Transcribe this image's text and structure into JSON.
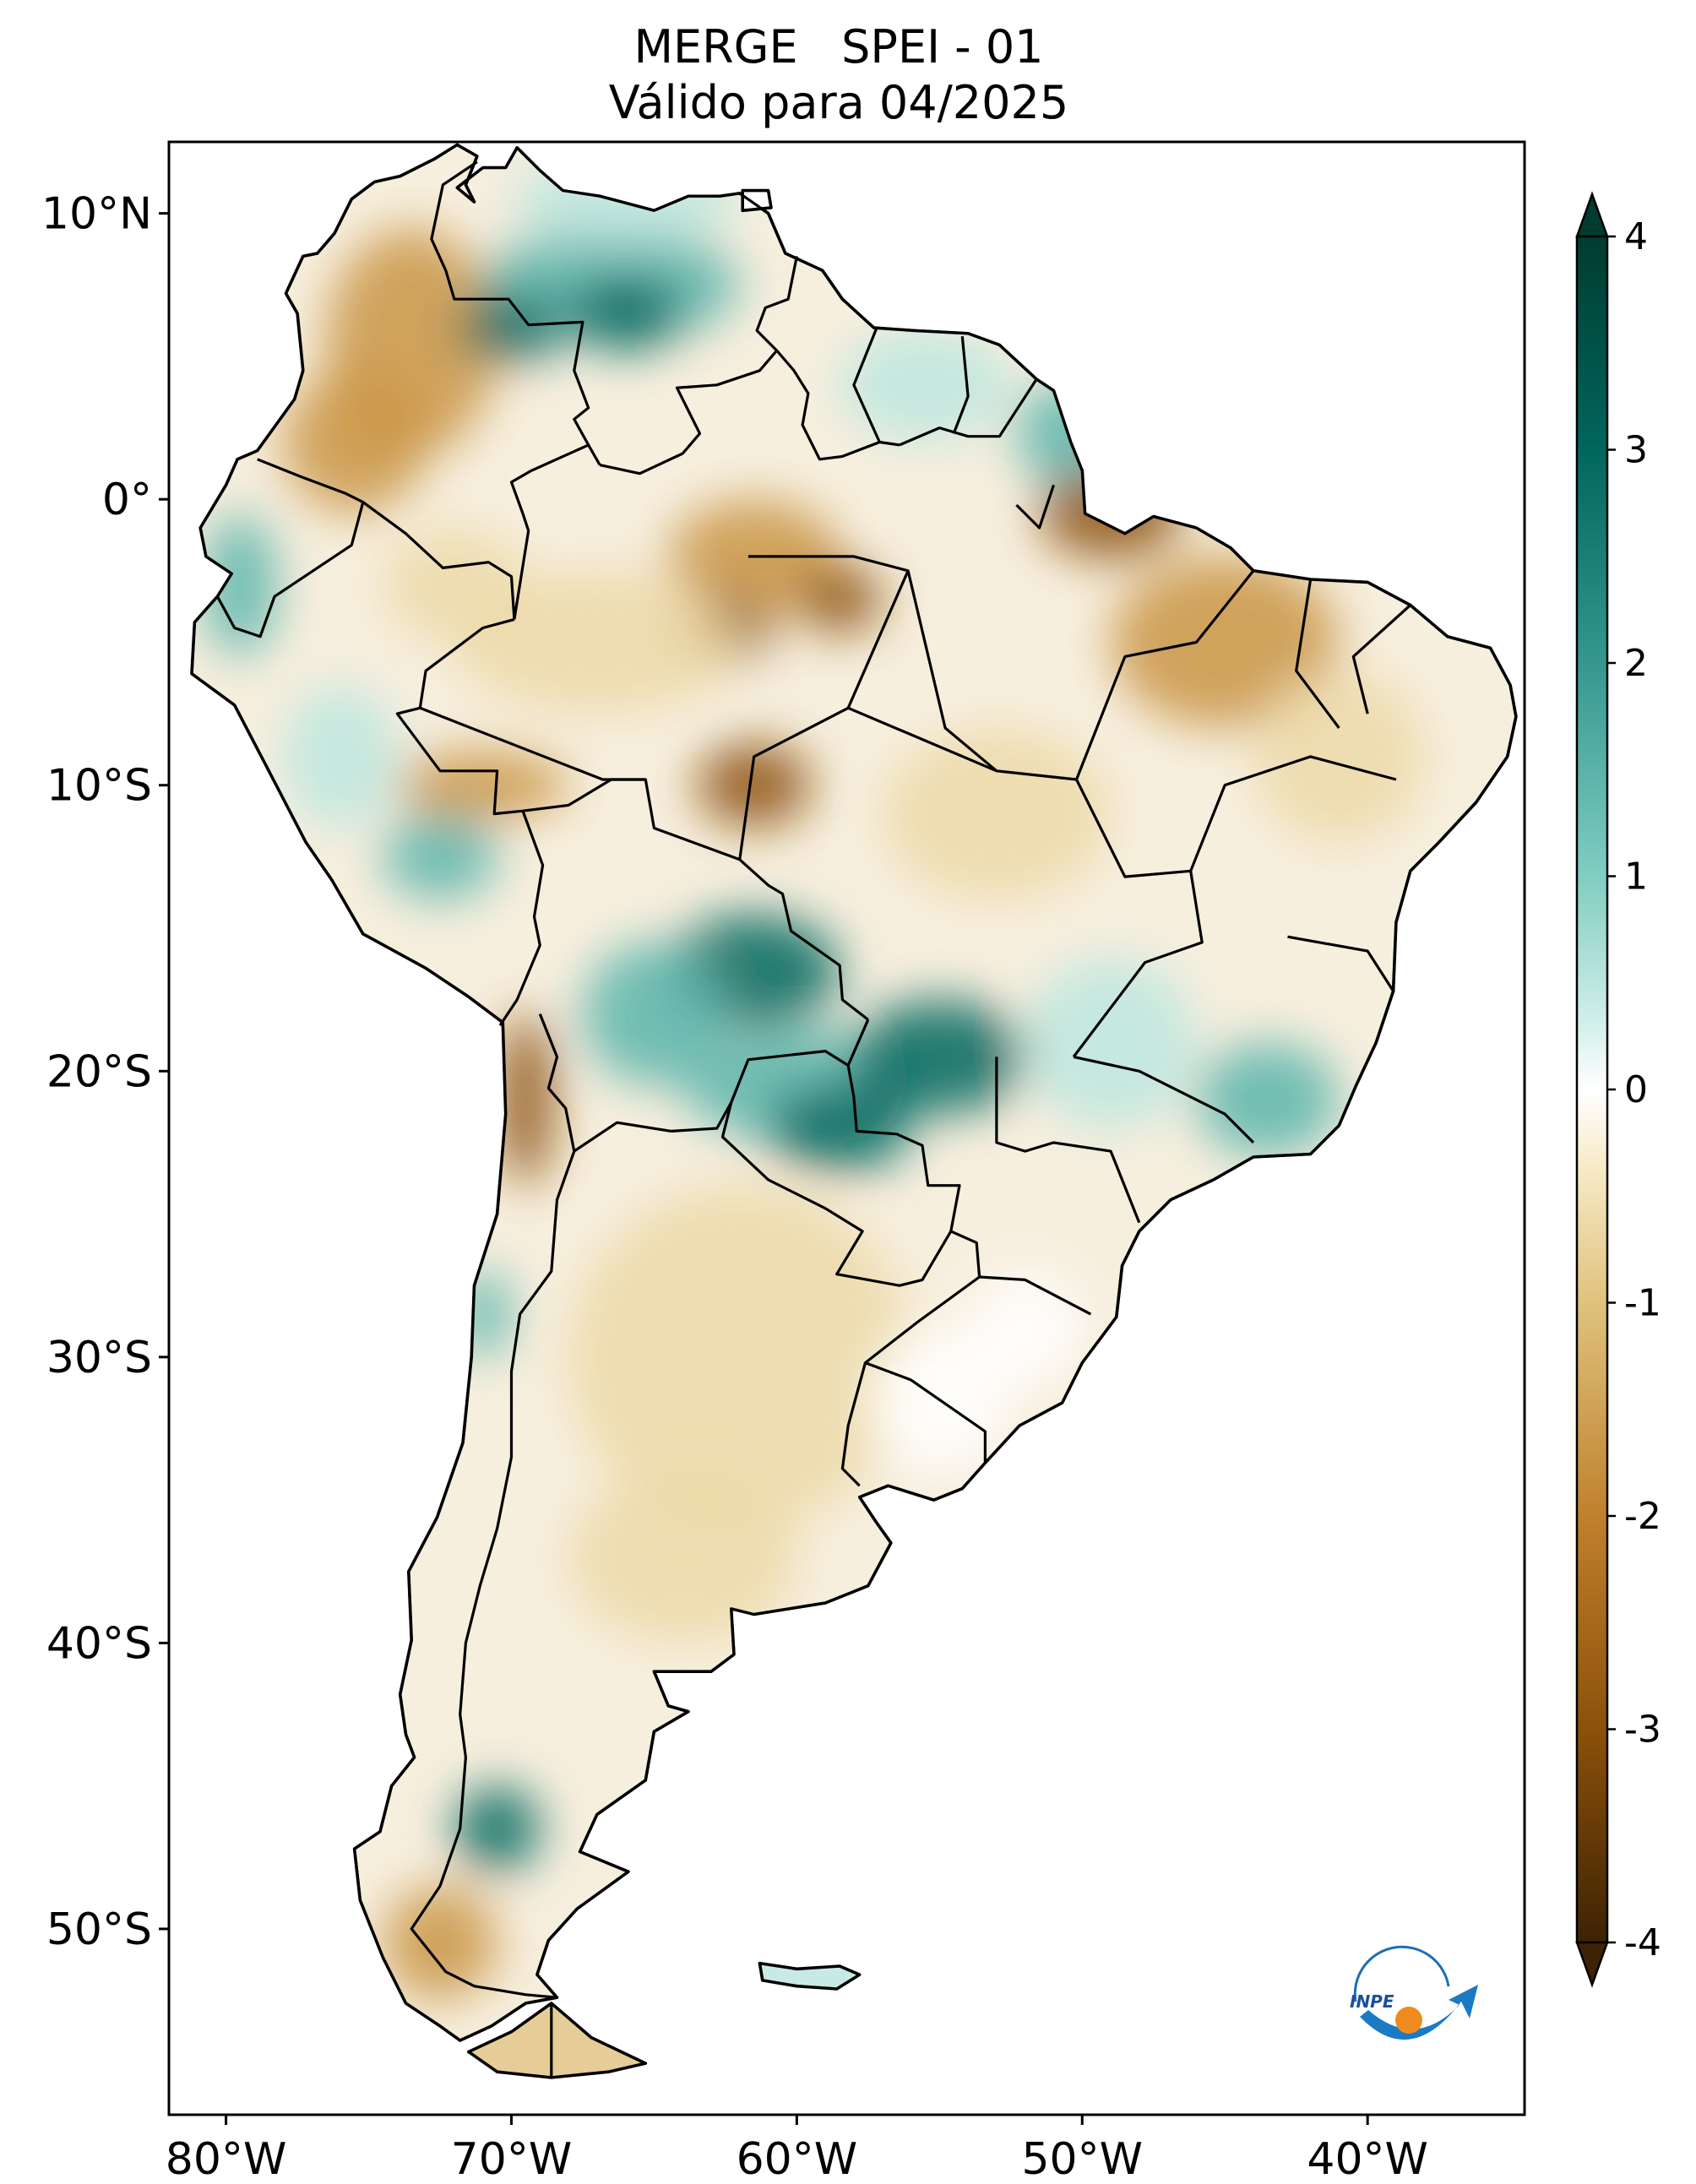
{
  "title": {
    "line1": "MERGE   SPEI - 01",
    "line2": "Válido para 04/2025"
  },
  "map": {
    "lat_ticks": [
      {
        "value": 10,
        "label": "10°N"
      },
      {
        "value": 0,
        "label": "0°"
      },
      {
        "value": -10,
        "label": "10°S"
      },
      {
        "value": -20,
        "label": "20°S"
      },
      {
        "value": -30,
        "label": "30°S"
      },
      {
        "value": -40,
        "label": "40°S"
      },
      {
        "value": -50,
        "label": "50°S"
      }
    ],
    "lon_ticks": [
      {
        "value": -80,
        "label": "80°W"
      },
      {
        "value": -70,
        "label": "70°W"
      },
      {
        "value": -60,
        "label": "60°W"
      },
      {
        "value": -50,
        "label": "50°W"
      },
      {
        "value": -40,
        "label": "40°W"
      }
    ],
    "extent": {
      "lon_min": -82,
      "lon_max": -34.5,
      "lat_min": -56.5,
      "lat_max": 12.5
    }
  },
  "colorbar": {
    "min": -4,
    "max": 4,
    "ticks": [
      {
        "value": 4,
        "label": "4"
      },
      {
        "value": 3,
        "label": "3"
      },
      {
        "value": 2,
        "label": "2"
      },
      {
        "value": 1,
        "label": "1"
      },
      {
        "value": 0,
        "label": "0"
      },
      {
        "value": -1,
        "label": "-1"
      },
      {
        "value": -2,
        "label": "-2"
      },
      {
        "value": -3,
        "label": "-3"
      },
      {
        "value": -4,
        "label": "-4"
      }
    ],
    "colors": {
      "dry_extreme": "#3d2304",
      "dry_severe": "#8c510a",
      "dry_moderate": "#c99544",
      "dry_mild": "#ecd9a8",
      "neutral": "#ffffff",
      "wet_mild": "#bce6df",
      "wet_moderate": "#5ab4ac",
      "wet_severe": "#01665e",
      "wet_extreme": "#003c30"
    }
  },
  "logo": {
    "text": "INPE"
  }
}
